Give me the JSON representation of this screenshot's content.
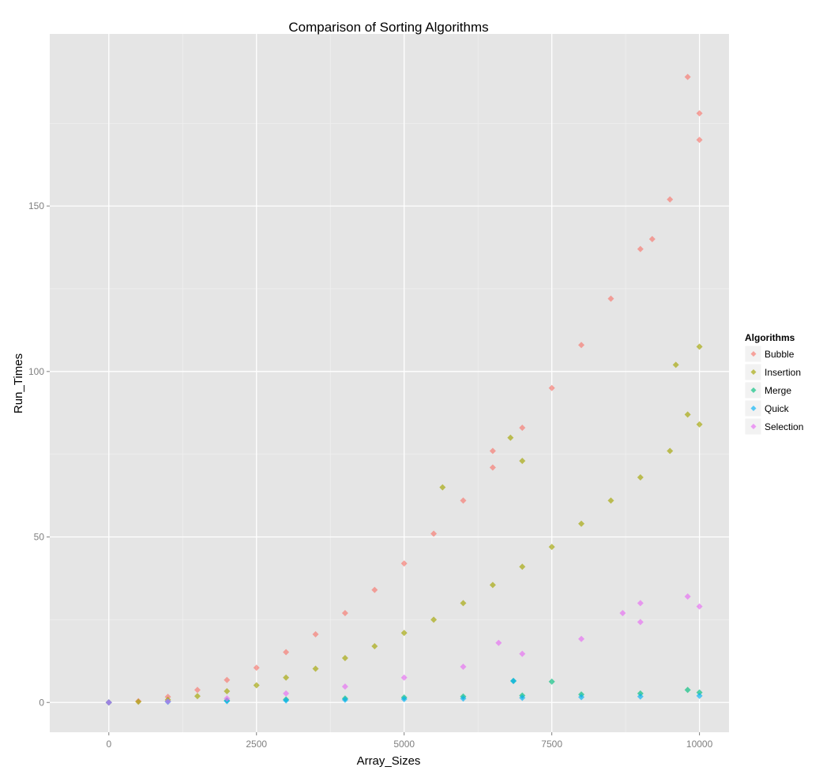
{
  "chart_data": {
    "type": "scatter",
    "title": "Comparison of Sorting Algorithms",
    "xlabel": "Array_Sizes",
    "ylabel": "Run_Times",
    "xlim": [
      -1000,
      10500
    ],
    "ylim": [
      -9,
      202
    ],
    "x_ticks": [
      0,
      2500,
      5000,
      7500,
      10000
    ],
    "y_ticks": [
      0,
      50,
      100,
      150
    ],
    "x_tick_labels": [
      "0",
      "2500",
      "5000",
      "7500",
      "10000"
    ],
    "y_tick_labels": [
      "0",
      "50",
      "100",
      "150"
    ],
    "grid": true,
    "legend": {
      "title": "Algorithms",
      "position": "right"
    },
    "series": [
      {
        "name": "Bubble",
        "color": "#F8766D",
        "points": [
          [
            0,
            0
          ],
          [
            500,
            0.4
          ],
          [
            1000,
            1.7
          ],
          [
            1500,
            3.8
          ],
          [
            2000,
            6.8
          ],
          [
            2500,
            10.5
          ],
          [
            3000,
            15.2
          ],
          [
            3500,
            20.6
          ],
          [
            4000,
            27
          ],
          [
            4500,
            34
          ],
          [
            5000,
            42
          ],
          [
            5500,
            51
          ],
          [
            6000,
            61
          ],
          [
            6500,
            71
          ],
          [
            7000,
            83
          ],
          [
            7500,
            95
          ],
          [
            8000,
            108
          ],
          [
            8500,
            122
          ],
          [
            9000,
            137
          ],
          [
            9500,
            152
          ],
          [
            10000,
            170
          ],
          [
            9800,
            189
          ],
          [
            10000,
            178
          ],
          [
            6500,
            76
          ],
          [
            9200,
            140
          ]
        ]
      },
      {
        "name": "Insertion",
        "color": "#A3A500",
        "points": [
          [
            0,
            0
          ],
          [
            500,
            0.2
          ],
          [
            1000,
            0.8
          ],
          [
            1500,
            1.9
          ],
          [
            2000,
            3.4
          ],
          [
            2500,
            5.2
          ],
          [
            3000,
            7.5
          ],
          [
            3500,
            10.2
          ],
          [
            4000,
            13.4
          ],
          [
            4500,
            17
          ],
          [
            5000,
            21
          ],
          [
            5500,
            25
          ],
          [
            6000,
            30
          ],
          [
            6500,
            35.5
          ],
          [
            7000,
            41
          ],
          [
            7500,
            47
          ],
          [
            8000,
            54
          ],
          [
            8500,
            61
          ],
          [
            9000,
            68
          ],
          [
            9500,
            76
          ],
          [
            10000,
            84
          ],
          [
            10000,
            107.5
          ],
          [
            9600,
            102
          ],
          [
            6800,
            80
          ],
          [
            7000,
            73
          ],
          [
            5650,
            65
          ],
          [
            9800,
            87
          ]
        ]
      },
      {
        "name": "Merge",
        "color": "#00BF7D",
        "points": [
          [
            0,
            0
          ],
          [
            1000,
            0.3
          ],
          [
            2000,
            0.6
          ],
          [
            3000,
            0.9
          ],
          [
            4000,
            1.2
          ],
          [
            5000,
            1.5
          ],
          [
            6000,
            1.8
          ],
          [
            7000,
            2.1
          ],
          [
            8000,
            2.4
          ],
          [
            9000,
            2.7
          ],
          [
            10000,
            3
          ],
          [
            6850,
            6.5
          ],
          [
            7500,
            6.3
          ],
          [
            9800,
            3.8
          ]
        ]
      },
      {
        "name": "Quick",
        "color": "#00B0F6",
        "points": [
          [
            0,
            0
          ],
          [
            1000,
            0.2
          ],
          [
            2000,
            0.4
          ],
          [
            3000,
            0.6
          ],
          [
            4000,
            0.8
          ],
          [
            5000,
            1
          ],
          [
            6000,
            1.2
          ],
          [
            7000,
            1.4
          ],
          [
            8000,
            1.6
          ],
          [
            9000,
            1.8
          ],
          [
            10000,
            2
          ],
          [
            6850,
            6.5
          ]
        ]
      },
      {
        "name": "Selection",
        "color": "#E76BF3",
        "points": [
          [
            0,
            0
          ],
          [
            1000,
            0.3
          ],
          [
            2000,
            1.2
          ],
          [
            3000,
            2.7
          ],
          [
            4000,
            4.8
          ],
          [
            5000,
            7.5
          ],
          [
            6000,
            10.8
          ],
          [
            7000,
            14.7
          ],
          [
            8000,
            19.2
          ],
          [
            9000,
            24.3
          ],
          [
            10000,
            29
          ],
          [
            9000,
            30
          ],
          [
            9800,
            32
          ],
          [
            6600,
            18
          ],
          [
            8700,
            27
          ]
        ]
      }
    ]
  }
}
